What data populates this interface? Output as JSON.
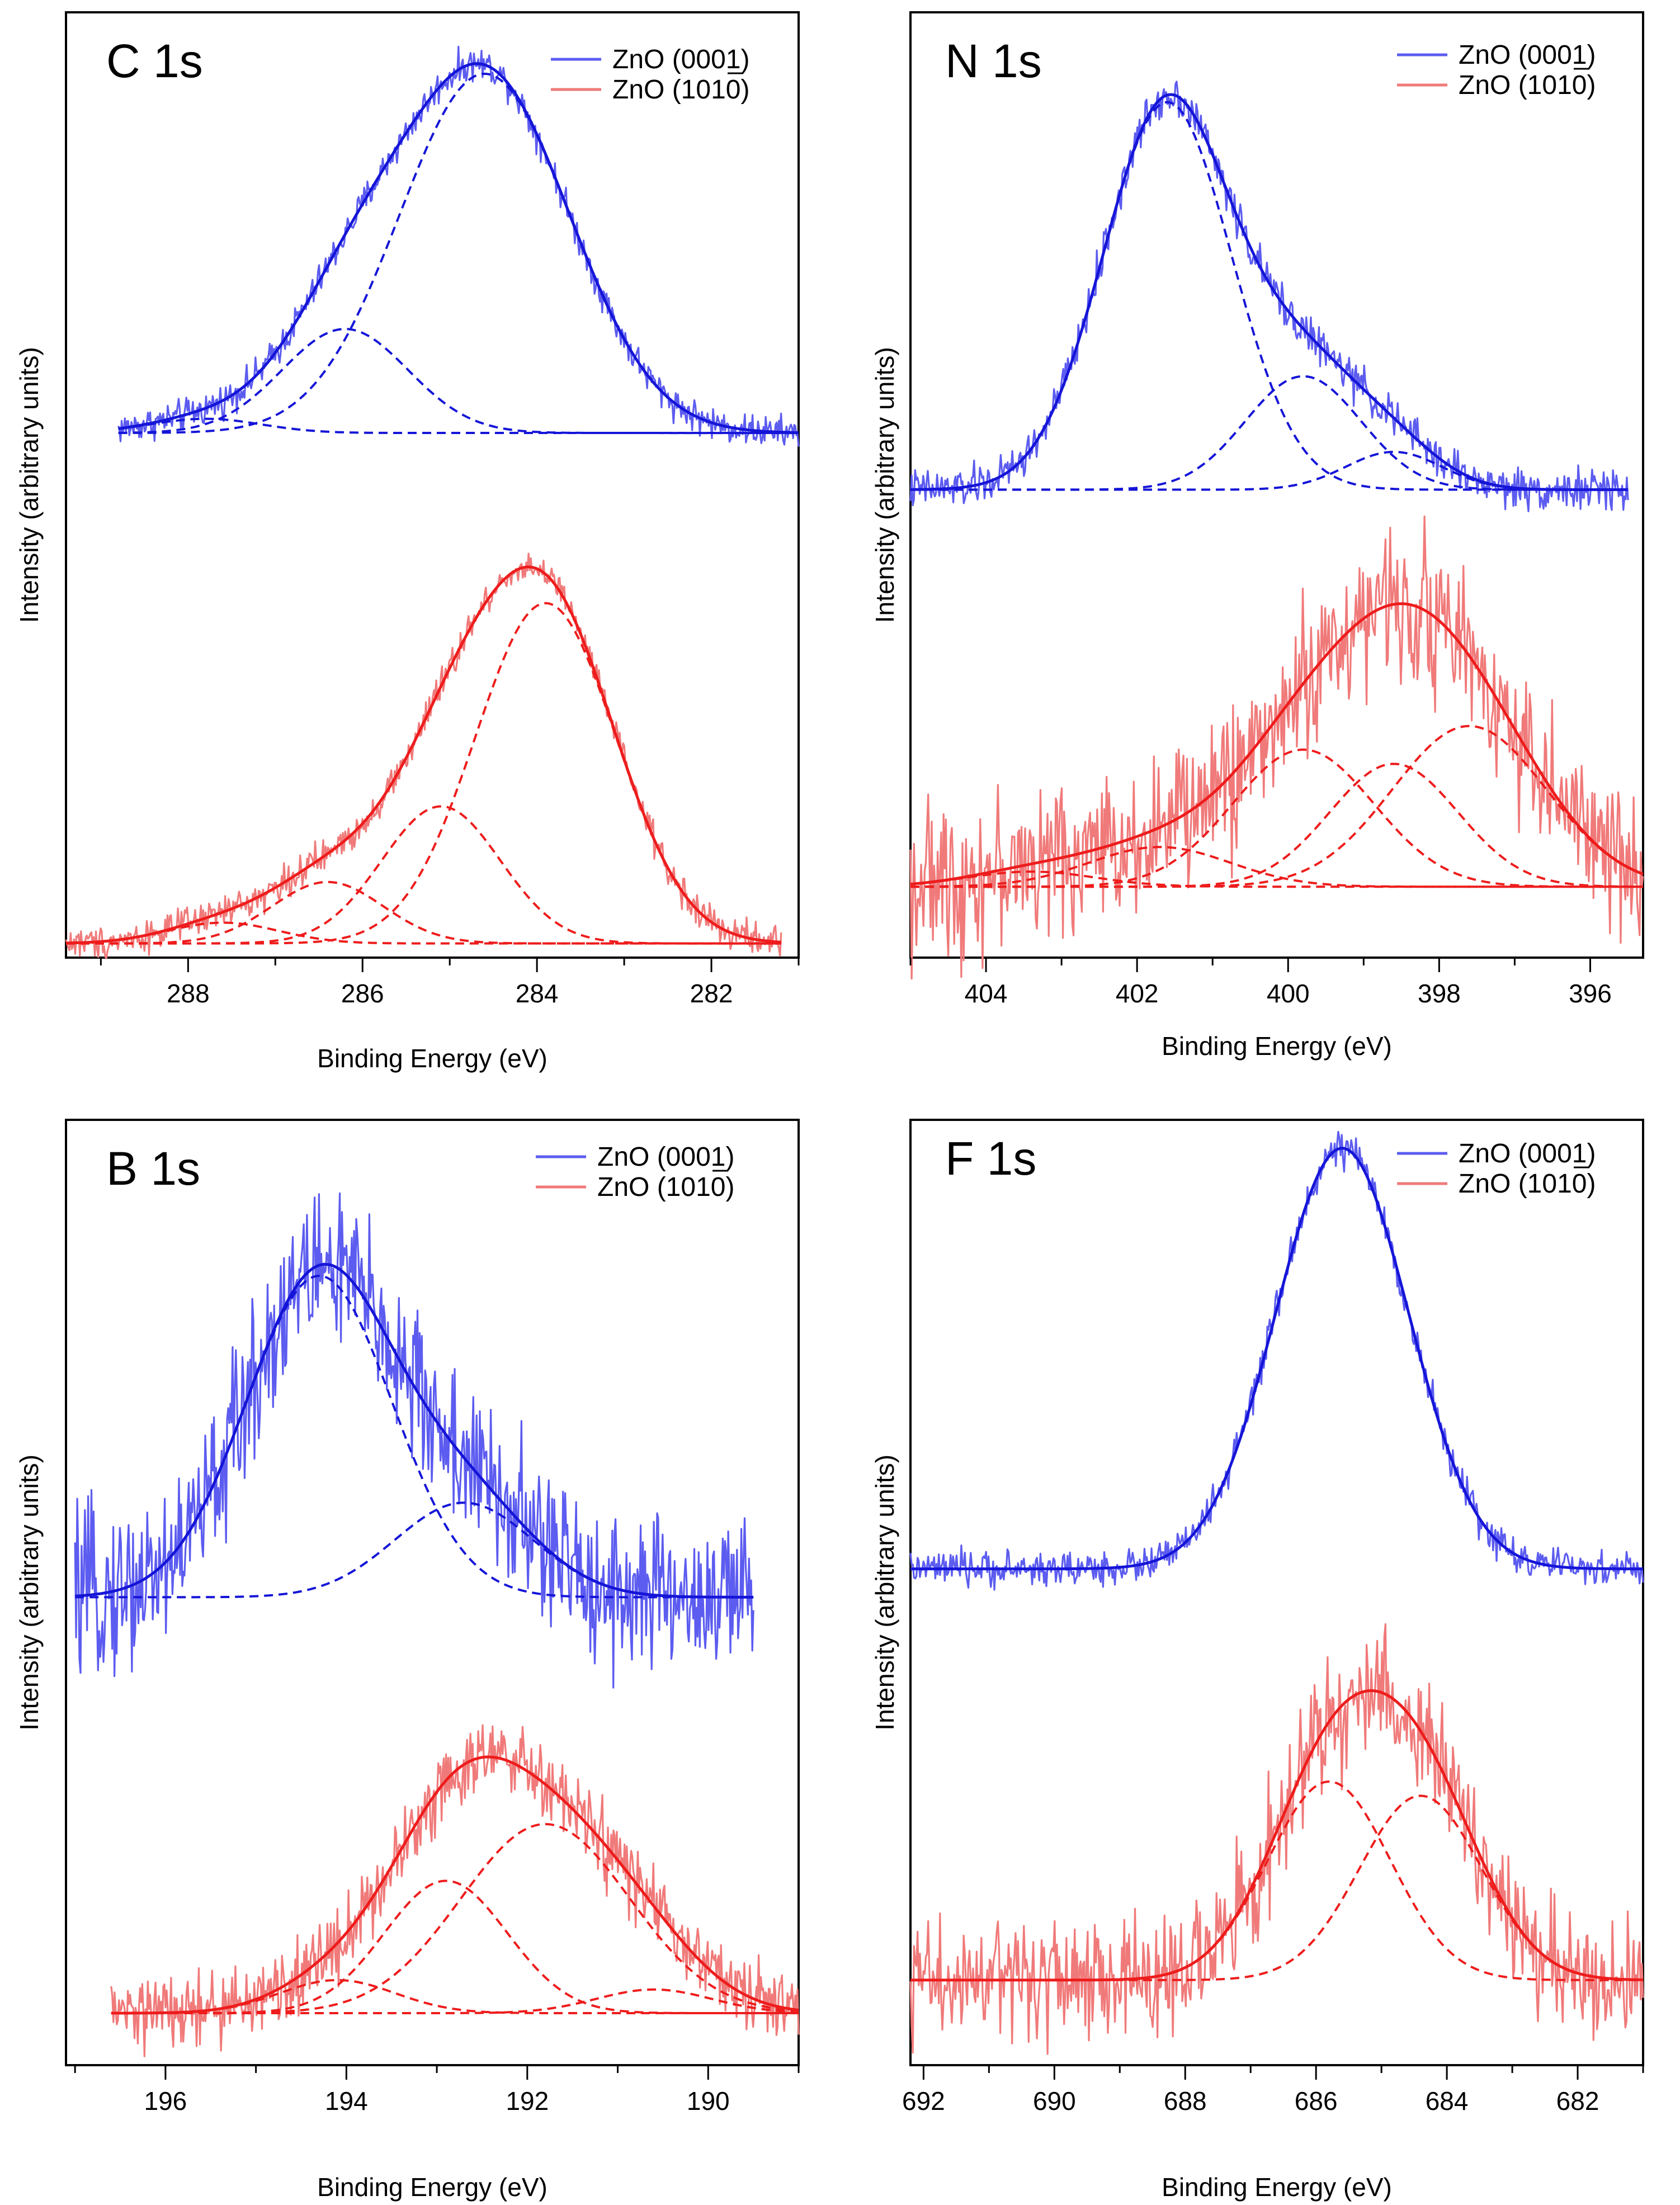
{
  "figure": {
    "ylabel": "Intensity (arbitrary units)",
    "xlabel": "Binding Energy (eV)"
  },
  "legend": {
    "entries": [
      {
        "name": "ZnO (0001)",
        "color": "#1515d8",
        "raw_color": "#5c5cf0"
      },
      {
        "name": "ZnO (1010)",
        "color": "#ee1c1c",
        "raw_color": "#f07a7a"
      }
    ]
  },
  "chart_data": [
    {
      "type": "line",
      "title": "C 1s",
      "xlabel": "Binding Energy (eV)",
      "ylabel": "Intensity (arbitrary units)",
      "xlim": [
        289.4,
        281.0
      ],
      "ylim": [
        0,
        10
      ],
      "xticks": [
        288,
        286,
        284,
        282
      ],
      "series": [
        {
          "name": "ZnO (0001)",
          "baseline": 5.55,
          "x_range": [
            288.8,
            281.0
          ],
          "noise": 0.12,
          "components": [
            {
              "center": 284.6,
              "height": 3.8,
              "fwhm": 2.3
            },
            {
              "center": 286.2,
              "height": 1.1,
              "fwhm": 1.7
            },
            {
              "center": 287.8,
              "height": 0.15,
              "fwhm": 1.5
            }
          ]
        },
        {
          "name": "ZnO (1010)",
          "baseline": 0.15,
          "x_range": [
            289.4,
            281.2
          ],
          "noise": 0.12,
          "components": [
            {
              "center": 283.9,
              "height": 3.6,
              "fwhm": 1.9
            },
            {
              "center": 285.1,
              "height": 1.45,
              "fwhm": 1.6
            },
            {
              "center": 286.4,
              "height": 0.65,
              "fwhm": 1.5
            },
            {
              "center": 287.6,
              "height": 0.22,
              "fwhm": 1.5
            }
          ]
        }
      ]
    },
    {
      "type": "line",
      "title": "N 1s",
      "xlabel": "Binding Energy (eV)",
      "ylabel": "Intensity (arbitrary units)",
      "xlim": [
        405.0,
        395.3
      ],
      "ylim": [
        0,
        10
      ],
      "xticks": [
        404,
        402,
        400,
        398,
        396
      ],
      "series": [
        {
          "name": "ZnO (0001)",
          "baseline": 4.95,
          "x_range": [
            405.0,
            395.5
          ],
          "noise": 0.15,
          "components": [
            {
              "center": 401.6,
              "height": 4.1,
              "fwhm": 2.0
            },
            {
              "center": 399.8,
              "height": 1.2,
              "fwhm": 1.8
            },
            {
              "center": 398.6,
              "height": 0.4,
              "fwhm": 1.5
            }
          ]
        },
        {
          "name": "ZnO (1010)",
          "baseline": 0.75,
          "x_range": [
            405.0,
            395.3
          ],
          "noise": 0.55,
          "components": [
            {
              "center": 397.6,
              "height": 1.7,
              "fwhm": 2.4
            },
            {
              "center": 398.6,
              "height": 1.3,
              "fwhm": 2.0
            },
            {
              "center": 399.8,
              "height": 1.45,
              "fwhm": 2.2
            },
            {
              "center": 401.7,
              "height": 0.42,
              "fwhm": 2.2
            },
            {
              "center": 403.4,
              "height": 0.16,
              "fwhm": 2.0
            }
          ]
        }
      ]
    },
    {
      "type": "line",
      "title": "B 1s",
      "xlabel": "Binding Energy (eV)",
      "ylabel": "Intensity (arbitrary units)",
      "xlim": [
        197.1,
        189.0
      ],
      "ylim": [
        0,
        10
      ],
      "xticks": [
        196,
        194,
        192,
        190
      ],
      "series": [
        {
          "name": "ZnO (0001)",
          "baseline": 4.95,
          "x_range": [
            197.0,
            189.5
          ],
          "noise": 0.6,
          "components": [
            {
              "center": 194.3,
              "height": 3.4,
              "fwhm": 1.9
            },
            {
              "center": 192.7,
              "height": 1.0,
              "fwhm": 1.8
            }
          ]
        },
        {
          "name": "ZnO (1010)",
          "baseline": 0.55,
          "x_range": [
            196.6,
            189.0
          ],
          "noise": 0.28,
          "components": [
            {
              "center": 191.8,
              "height": 2.0,
              "fwhm": 2.2
            },
            {
              "center": 192.9,
              "height": 1.4,
              "fwhm": 1.6
            },
            {
              "center": 194.1,
              "height": 0.35,
              "fwhm": 1.5
            },
            {
              "center": 190.6,
              "height": 0.25,
              "fwhm": 1.5
            }
          ]
        }
      ]
    },
    {
      "type": "line",
      "title": "F 1s",
      "xlabel": "Binding Energy (eV)",
      "ylabel": "Intensity (arbitrary units)",
      "xlim": [
        692.2,
        681.0
      ],
      "ylim": [
        0,
        10
      ],
      "xticks": [
        692,
        690,
        688,
        686,
        684,
        682
      ],
      "series": [
        {
          "name": "ZnO (0001)",
          "baseline": 5.25,
          "x_range": [
            692.2,
            681.0
          ],
          "noise": 0.13,
          "components": [
            {
              "center": 685.6,
              "height": 4.45,
              "fwhm": 2.4
            }
          ]
        },
        {
          "name": "ZnO (1010)",
          "baseline": 0.9,
          "x_range": [
            692.2,
            681.0
          ],
          "noise": 0.45,
          "components": [
            {
              "center": 685.8,
              "height": 2.1,
              "fwhm": 2.2
            },
            {
              "center": 684.4,
              "height": 1.95,
              "fwhm": 2.2
            }
          ]
        }
      ]
    }
  ]
}
